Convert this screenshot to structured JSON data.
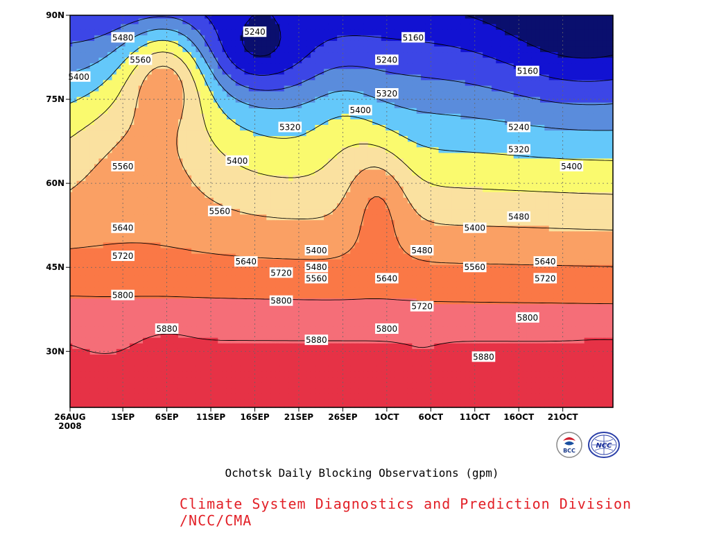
{
  "title": "Ochotsk Daily Blocking Observations (gpm)",
  "credit": "Climate System Diagnostics and Prediction Division /NCC/CMA",
  "credit_color": "#e21f26",
  "logos": [
    {
      "name": "bcc-logo",
      "text": "BCC"
    },
    {
      "name": "ncc-logo",
      "text": "NCC"
    }
  ],
  "chart_data": {
    "type": "heatmap",
    "subtype": "filled-contour",
    "x_ticks": [
      "26AUG",
      "1SEP",
      "6SEP",
      "11SEP",
      "16SEP",
      "21SEP",
      "26SEP",
      "1OCT",
      "6OCT",
      "11OCT",
      "16OCT",
      "21OCT"
    ],
    "x_year": "2008",
    "y_ticks": [
      "90N",
      "75N",
      "60N",
      "45N",
      "30N"
    ],
    "y_tick_values": [
      90,
      75,
      60,
      45,
      30
    ],
    "ylim": [
      20,
      90
    ],
    "contour_levels": [
      5160,
      5240,
      5320,
      5400,
      5480,
      5560,
      5640,
      5720,
      5800,
      5880
    ],
    "fill_colors": [
      "#0a0f6e",
      "#1212d2",
      "#3c46e6",
      "#5a8cdc",
      "#64c8fa",
      "#fafa6e",
      "#fae1a0",
      "#faa064",
      "#fa7846",
      "#f56e78",
      "#e63246"
    ],
    "contour_labels": [
      {
        "value": "5240",
        "x": "16SEP",
        "lat": 87
      },
      {
        "value": "5160",
        "x": "4OCT",
        "lat": 86
      },
      {
        "value": "5480",
        "x": "1SEP",
        "lat": 86
      },
      {
        "value": "5560",
        "x": "3SEP",
        "lat": 82
      },
      {
        "value": "5400",
        "x": "27AUG",
        "lat": 79
      },
      {
        "value": "5240",
        "x": "1OCT",
        "lat": 82
      },
      {
        "value": "5160",
        "x": "17OCT",
        "lat": 80
      },
      {
        "value": "5320",
        "x": "1OCT",
        "lat": 76
      },
      {
        "value": "5400",
        "x": "28SEP",
        "lat": 73
      },
      {
        "value": "5320",
        "x": "20SEP",
        "lat": 70
      },
      {
        "value": "5240",
        "x": "16OCT",
        "lat": 70
      },
      {
        "value": "5320",
        "x": "16OCT",
        "lat": 66
      },
      {
        "value": "5560",
        "x": "1SEP",
        "lat": 63
      },
      {
        "value": "5400",
        "x": "14SEP",
        "lat": 64
      },
      {
        "value": "5400",
        "x": "22OCT",
        "lat": 63
      },
      {
        "value": "5560",
        "x": "12SEP",
        "lat": 55
      },
      {
        "value": "5480",
        "x": "16OCT",
        "lat": 54
      },
      {
        "value": "5640",
        "x": "1SEP",
        "lat": 52
      },
      {
        "value": "5400",
        "x": "11OCT",
        "lat": 52
      },
      {
        "value": "5480",
        "x": "5OCT",
        "lat": 48
      },
      {
        "value": "5400",
        "x": "23SEP",
        "lat": 48
      },
      {
        "value": "5720",
        "x": "1SEP",
        "lat": 47
      },
      {
        "value": "5640",
        "x": "15SEP",
        "lat": 46
      },
      {
        "value": "5480",
        "x": "23SEP",
        "lat": 45
      },
      {
        "value": "5560",
        "x": "11OCT",
        "lat": 45
      },
      {
        "value": "5640",
        "x": "19OCT",
        "lat": 46
      },
      {
        "value": "5720",
        "x": "19SEP",
        "lat": 44
      },
      {
        "value": "5560",
        "x": "23SEP",
        "lat": 43
      },
      {
        "value": "5640",
        "x": "1OCT",
        "lat": 43
      },
      {
        "value": "5720",
        "x": "19OCT",
        "lat": 43
      },
      {
        "value": "5800",
        "x": "1SEP",
        "lat": 40
      },
      {
        "value": "5800",
        "x": "19SEP",
        "lat": 39
      },
      {
        "value": "5720",
        "x": "5OCT",
        "lat": 38
      },
      {
        "value": "5800",
        "x": "17OCT",
        "lat": 36
      },
      {
        "value": "5880",
        "x": "6SEP",
        "lat": 34
      },
      {
        "value": "5800",
        "x": "1OCT",
        "lat": 34
      },
      {
        "value": "5880",
        "x": "23SEP",
        "lat": 32
      },
      {
        "value": "5880",
        "x": "12OCT",
        "lat": 29
      }
    ]
  }
}
